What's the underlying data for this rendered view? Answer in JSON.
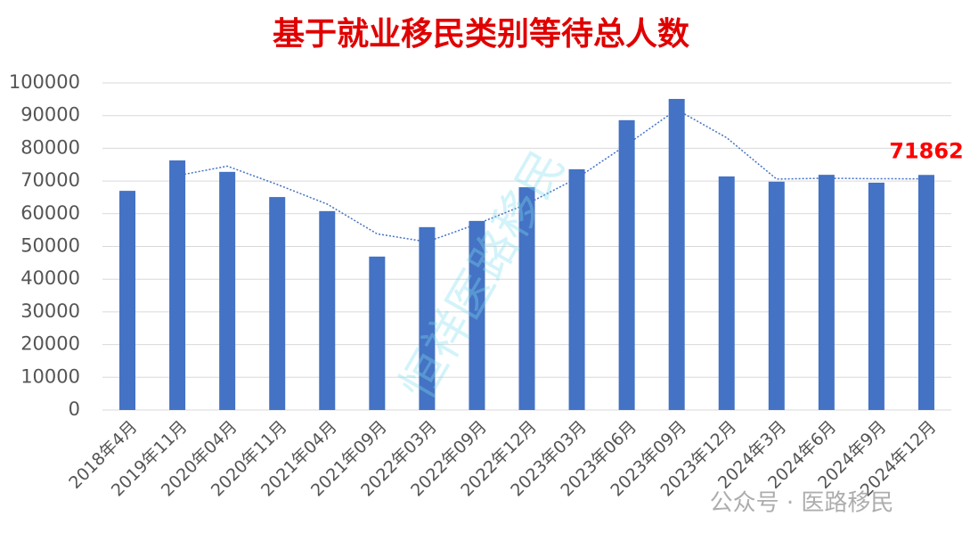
{
  "chart_data": {
    "type": "bar",
    "title": "基于就业移民类别等待总人数",
    "categories": [
      "2018年4月",
      "2019年11月",
      "2020年04月",
      "2020年11月",
      "2021年04月",
      "2021年09月",
      "2022年03月",
      "2022年09月",
      "2022年12月",
      "2023年03月",
      "2023年06月",
      "2023年09月",
      "2023年12月",
      "2024年3月",
      "2024年6月",
      "2024年9月",
      "2024年12月"
    ],
    "values": [
      67000,
      76300,
      72800,
      65100,
      60800,
      46900,
      55900,
      57800,
      68100,
      73600,
      88600,
      95100,
      71400,
      69800,
      71900,
      69500,
      71862
    ],
    "value_labels": [
      null,
      null,
      null,
      null,
      null,
      null,
      null,
      null,
      null,
      null,
      null,
      null,
      null,
      null,
      null,
      null,
      "71862"
    ],
    "trend_values": [
      null,
      71650,
      74550,
      68950,
      62950,
      53850,
      51400,
      56850,
      62950,
      70850,
      81100,
      91850,
      83250,
      70600,
      70850,
      70700,
      70681
    ],
    "color": "#4472c4",
    "value_label_color": "#ff0000",
    "ylim": [
      0,
      100000
    ],
    "yticks": [
      0,
      10000,
      20000,
      30000,
      40000,
      50000,
      60000,
      70000,
      80000,
      90000,
      100000
    ],
    "grid": true,
    "watermarks": [
      "恒祥医路移民",
      "公众号 · 医路移民"
    ]
  }
}
